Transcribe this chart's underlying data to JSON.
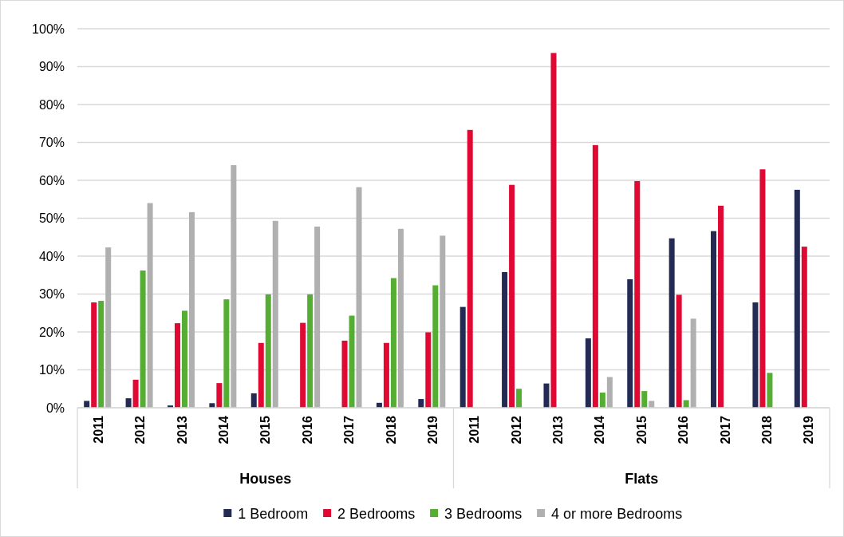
{
  "chart_data": {
    "type": "bar",
    "categories": [
      "2011",
      "2012",
      "2013",
      "2014",
      "2015",
      "2016",
      "2017",
      "2018",
      "2019",
      "2011",
      "2012",
      "2013",
      "2014",
      "2015",
      "2016",
      "2017",
      "2018",
      "2019"
    ],
    "series": [
      {
        "name": "1 Bedroom",
        "color": "#232b55",
        "values": [
          1.8,
          2.5,
          0.6,
          1.2,
          3.8,
          0,
          0,
          1.3,
          2.3,
          26.6,
          35.8,
          6.4,
          18.3,
          33.9,
          44.7,
          46.6,
          27.8,
          57.5
        ]
      },
      {
        "name": "2 Bedrooms",
        "color": "#e00934",
        "values": [
          27.8,
          7.4,
          22.3,
          6.5,
          17.1,
          22.4,
          17.7,
          17.1,
          19.9,
          73.3,
          58.8,
          93.6,
          69.3,
          59.8,
          29.8,
          53.3,
          62.9,
          42.5
        ]
      },
      {
        "name": "3 Bedrooms",
        "color": "#56ad33",
        "values": [
          28.2,
          36.2,
          25.6,
          28.6,
          29.9,
          29.9,
          24.3,
          34.2,
          32.3,
          0,
          5,
          0,
          4,
          4.4,
          2,
          0,
          9.2,
          0
        ]
      },
      {
        "name": "4 or more Bedrooms",
        "color": "#b0b0b0",
        "values": [
          42.3,
          54,
          51.6,
          64,
          49.3,
          47.8,
          58.2,
          47.2,
          45.4,
          0,
          0,
          0,
          8.1,
          1.8,
          23.5,
          0,
          0,
          0
        ]
      }
    ],
    "annotations": [
      "Houses",
      "Flats"
    ],
    "ylim": [
      0,
      100
    ],
    "yticks": [
      {
        "value": 0,
        "label": "0%"
      },
      {
        "value": 10,
        "label": "10%"
      },
      {
        "value": 20,
        "label": "20%"
      },
      {
        "value": 30,
        "label": "30%"
      },
      {
        "value": 40,
        "label": "40%"
      },
      {
        "value": 50,
        "label": "50%"
      },
      {
        "value": 60,
        "label": "60%"
      },
      {
        "value": 70,
        "label": "70%"
      },
      {
        "value": 80,
        "label": "80%"
      },
      {
        "value": 90,
        "label": "90%"
      },
      {
        "value": 100,
        "label": "100%"
      }
    ],
    "grid": "y",
    "legend": "bottom"
  }
}
